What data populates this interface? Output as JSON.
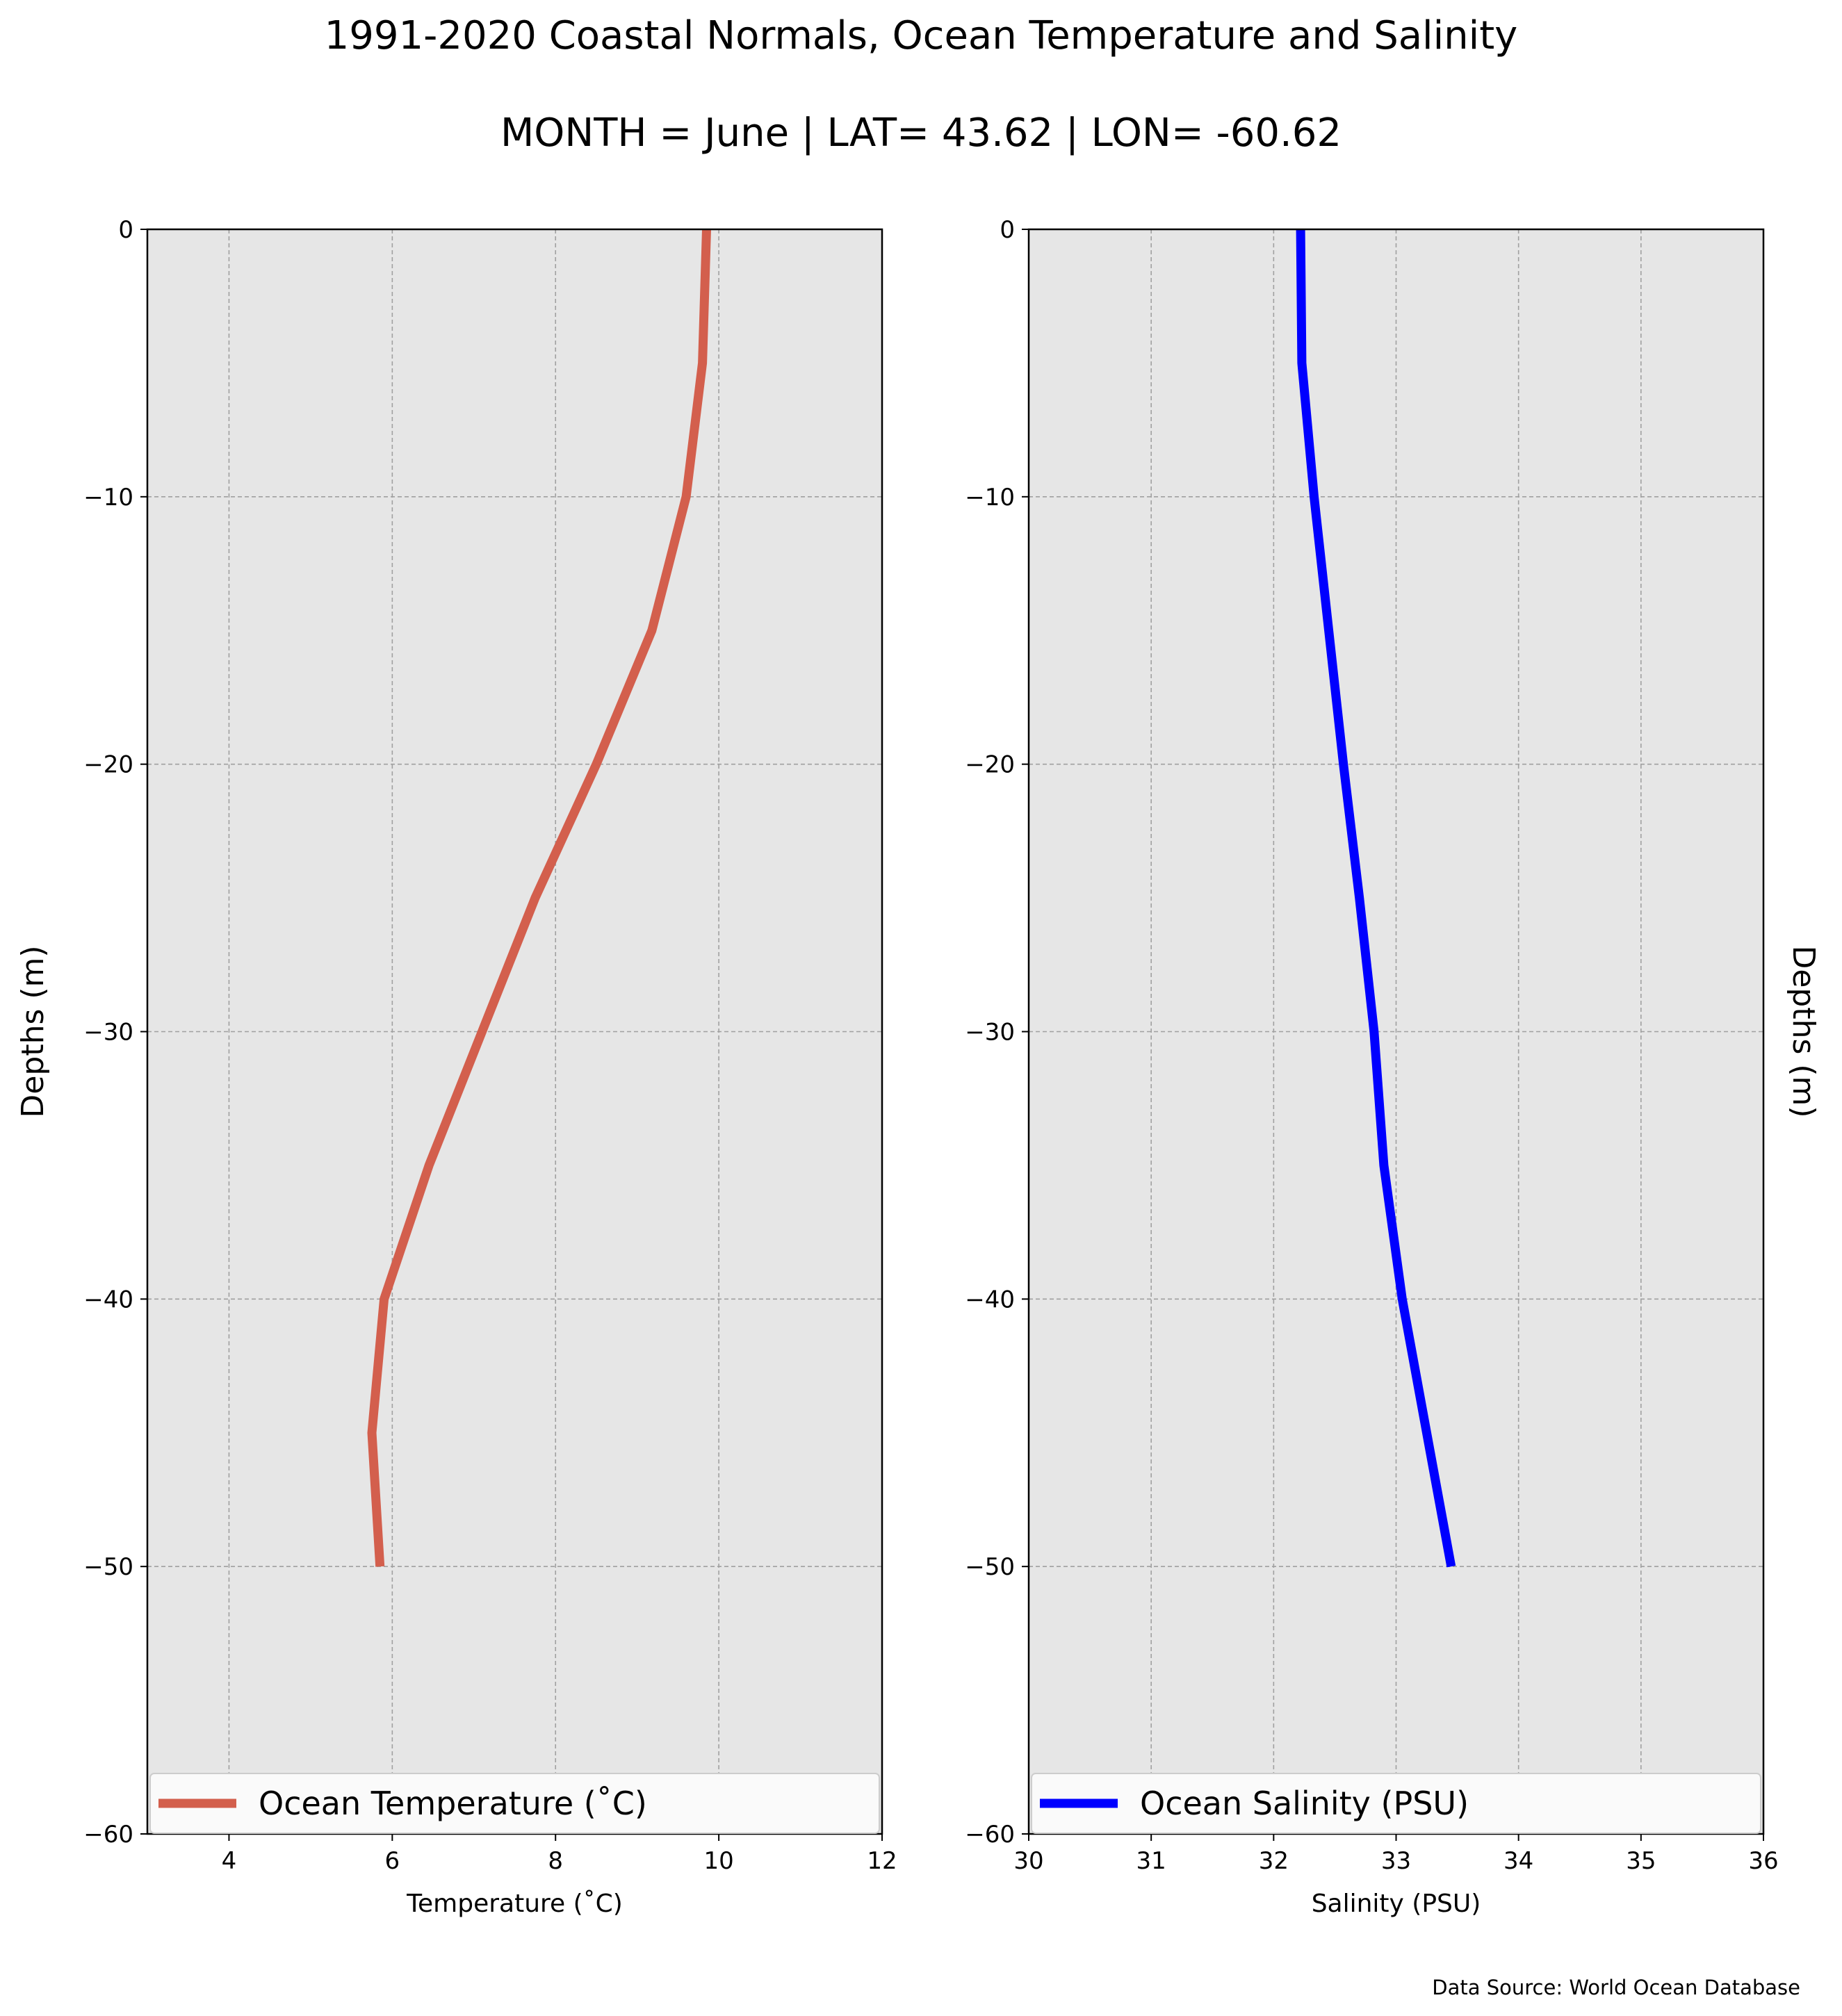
{
  "title": "1991-2020 Coastal Normals, Ocean Temperature and Salinity",
  "subtitle": "MONTH = June | LAT= 43.62 | LON= -60.62",
  "source_note": "Data Source: World Ocean Database",
  "colors": {
    "temperature_line": "#d35f4d",
    "salinity_line": "#0000ff",
    "plot_background": "#e6e6e6",
    "grid": "#a0a0a0"
  },
  "chart_data": [
    {
      "type": "line",
      "panel": "left",
      "xlabel": "Temperature ($^\\circ$C)",
      "xlabel_display": "Temperature (˚C)",
      "ylabel": "Depths (m)",
      "xlim": [
        3,
        12
      ],
      "ylim": [
        -60,
        0
      ],
      "xticks": [
        4,
        6,
        8,
        10,
        12
      ],
      "yticks": [
        0,
        -10,
        -20,
        -30,
        -40,
        -50,
        -60
      ],
      "ytick_labels": [
        "0",
        "−10",
        "−20",
        "−30",
        "−40",
        "−50",
        "−60"
      ],
      "grid": true,
      "legend_position": "bottom",
      "series": [
        {
          "name": "Ocean Temperature (˚C)",
          "x": [
            9.85,
            9.8,
            9.6,
            9.18,
            8.5,
            7.75,
            7.1,
            6.45,
            5.9,
            5.75,
            5.85
          ],
          "y": [
            0,
            -5,
            -10,
            -15,
            -20,
            -25,
            -30,
            -35,
            -40,
            -45,
            -50
          ]
        }
      ]
    },
    {
      "type": "line",
      "panel": "right",
      "xlabel": "Salinity (PSU)",
      "ylabel": "Depths (m)",
      "xlim": [
        30,
        36
      ],
      "ylim": [
        -60,
        0
      ],
      "xticks": [
        30,
        31,
        32,
        33,
        34,
        35,
        36
      ],
      "yticks": [
        0,
        -10,
        -20,
        -30,
        -40,
        -50,
        -60
      ],
      "ytick_labels": [
        "0",
        "−10",
        "−20",
        "−30",
        "−40",
        "−50",
        "−60"
      ],
      "grid": true,
      "legend_position": "bottom",
      "series": [
        {
          "name": "Ocean Salinity (PSU)",
          "x": [
            32.22,
            32.23,
            32.33,
            32.45,
            32.57,
            32.7,
            32.82,
            32.9,
            33.05,
            33.25,
            33.45
          ],
          "y": [
            0,
            -5,
            -10,
            -15,
            -20,
            -25,
            -30,
            -35,
            -40,
            -45,
            -50
          ]
        }
      ]
    }
  ]
}
